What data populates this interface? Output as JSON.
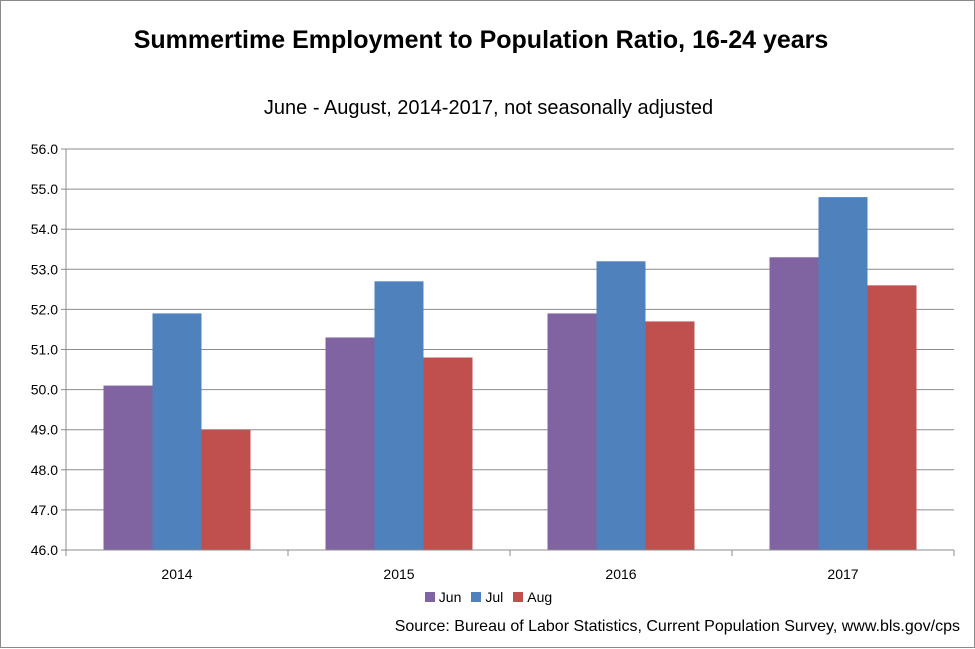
{
  "chart_data": {
    "type": "bar",
    "title": "Summertime Employment to Population Ratio, 16-24 years",
    "subtitle": "June - August, 2014-2017, not seasonally adjusted",
    "xlabel": "",
    "ylabel": "",
    "categories": [
      "2014",
      "2015",
      "2016",
      "2017"
    ],
    "series": [
      {
        "name": "Jun",
        "color": "#8064a2",
        "values": [
          50.1,
          51.3,
          51.9,
          53.3
        ]
      },
      {
        "name": "Jul",
        "color": "#4f81bd",
        "values": [
          51.9,
          52.7,
          53.2,
          54.8
        ]
      },
      {
        "name": "Aug",
        "color": "#c0504d",
        "values": [
          49.0,
          50.8,
          51.7,
          52.6
        ]
      }
    ],
    "ylim": [
      46.0,
      56.0
    ],
    "yticks": [
      "46.0",
      "47.0",
      "48.0",
      "49.0",
      "50.0",
      "51.0",
      "52.0",
      "53.0",
      "54.0",
      "55.0",
      "56.0"
    ],
    "grid": true,
    "legend_position": "bottom",
    "source": "Source: Bureau of Labor Statistics, Current Population Survey, www.bls.gov/cps"
  }
}
